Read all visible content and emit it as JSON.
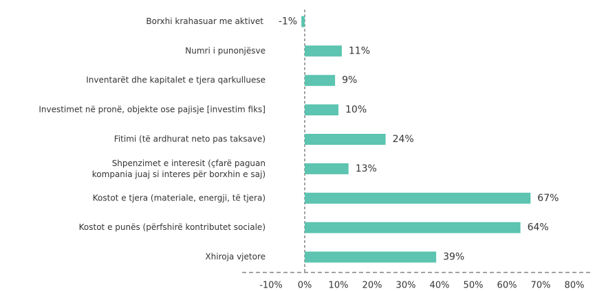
{
  "chart_data": {
    "type": "hbar",
    "categories": [
      "Borxhi krahasuar me aktivet",
      "Numri i punonjësve",
      "Inventarët dhe kapitalet e tjera qarkulluese",
      "Investimet në pronë, objekte ose pajisje [investim fiks]",
      "Fitimi (të ardhurat neto pas taksave)",
      "Shpenzimet e interesit (çfarë paguan\nkompania juaj si interes për borxhin e saj)",
      "Kostot e tjera (materiale, energji, të tjera)",
      "Kostot e punës (përfshirë kontributet sociale)",
      "Xhiroja vjetore"
    ],
    "values": [
      -1,
      11,
      9,
      10,
      24,
      13,
      67,
      64,
      39
    ],
    "value_labels": [
      "-1%",
      "11%",
      "9%",
      "10%",
      "24%",
      "13%",
      "67%",
      "64%",
      "39%"
    ],
    "color": "#5cc4b0",
    "xlim": [
      -10,
      80
    ],
    "xticks": [
      {
        "value": -10,
        "label": "-10%"
      },
      {
        "value": 0,
        "label": "0%"
      },
      {
        "value": 10,
        "label": "10%"
      },
      {
        "value": 20,
        "label": "20%"
      },
      {
        "value": 30,
        "label": "30%"
      },
      {
        "value": 40,
        "label": "40%"
      },
      {
        "value": 50,
        "label": "50%"
      },
      {
        "value": 60,
        "label": "60%"
      },
      {
        "value": 70,
        "label": "70%"
      },
      {
        "value": 80,
        "label": "80%"
      }
    ]
  }
}
